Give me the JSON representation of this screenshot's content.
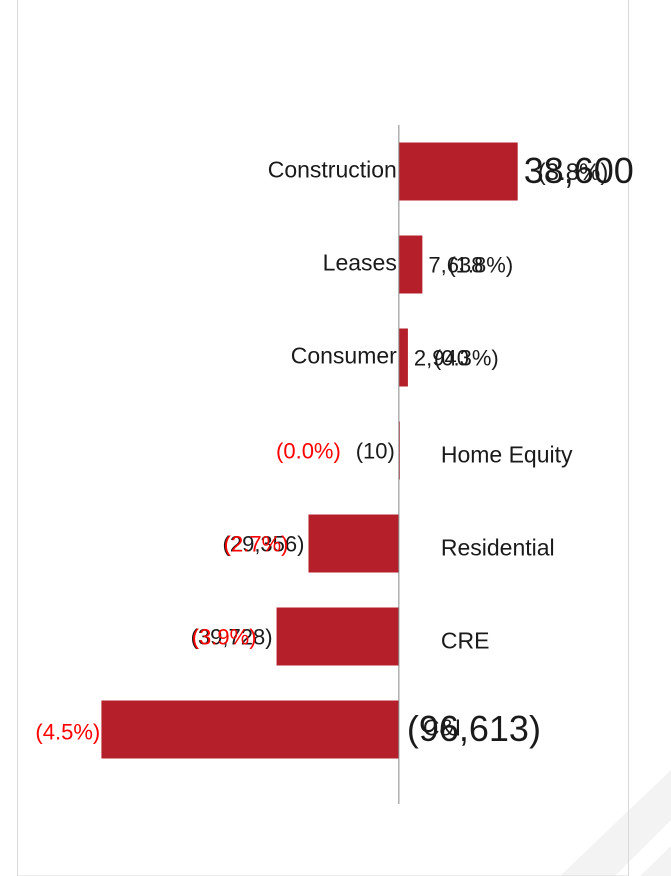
{
  "chart_data": {
    "type": "hbar",
    "categories": [
      "Construction",
      "Leases",
      "Consumer",
      "Home Equity",
      "Residential",
      "CRE",
      "C&I"
    ],
    "values": [
      38600,
      7638,
      2940,
      -10,
      -29356,
      -39728,
      -96613
    ],
    "value_labels": [
      "38,600",
      "7,638",
      "2,940",
      "(10)",
      "(29,356)",
      "(39,728)",
      "(96,613)"
    ],
    "percent_labels": [
      "(3.8%)",
      "(1.8%)",
      "(0.3%)",
      "(0.0%)",
      "(2.7%)",
      "(3.9%)",
      "(4.5%)"
    ],
    "color": "#b51f29",
    "negative_percent_color": "#ff0000",
    "xlim": [
      -100000,
      40000
    ]
  }
}
